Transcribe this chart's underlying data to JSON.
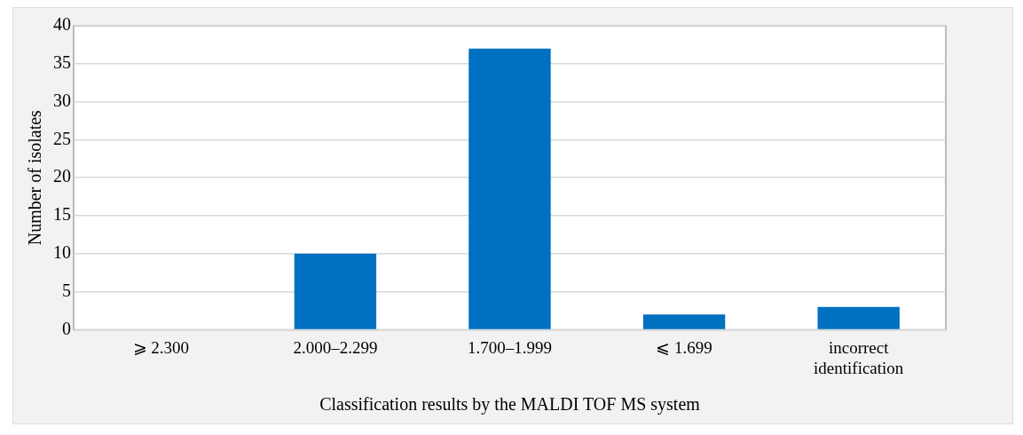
{
  "chart_data": {
    "type": "bar",
    "xlabel": "Classification results by the MALDI TOF MS system",
    "ylabel": "Number of isolates",
    "categories": [
      "⩾ 2.300",
      "2.000–2.299",
      "1.700–1.999",
      "⩽ 1.699",
      "incorrect identification"
    ],
    "values": [
      0,
      10,
      37,
      2,
      3
    ],
    "color": "#0070c0",
    "ylim": [
      0,
      40
    ],
    "yticks": [
      0,
      5,
      10,
      15,
      20,
      25,
      30,
      35,
      40
    ],
    "grid": "y",
    "legend": false
  }
}
